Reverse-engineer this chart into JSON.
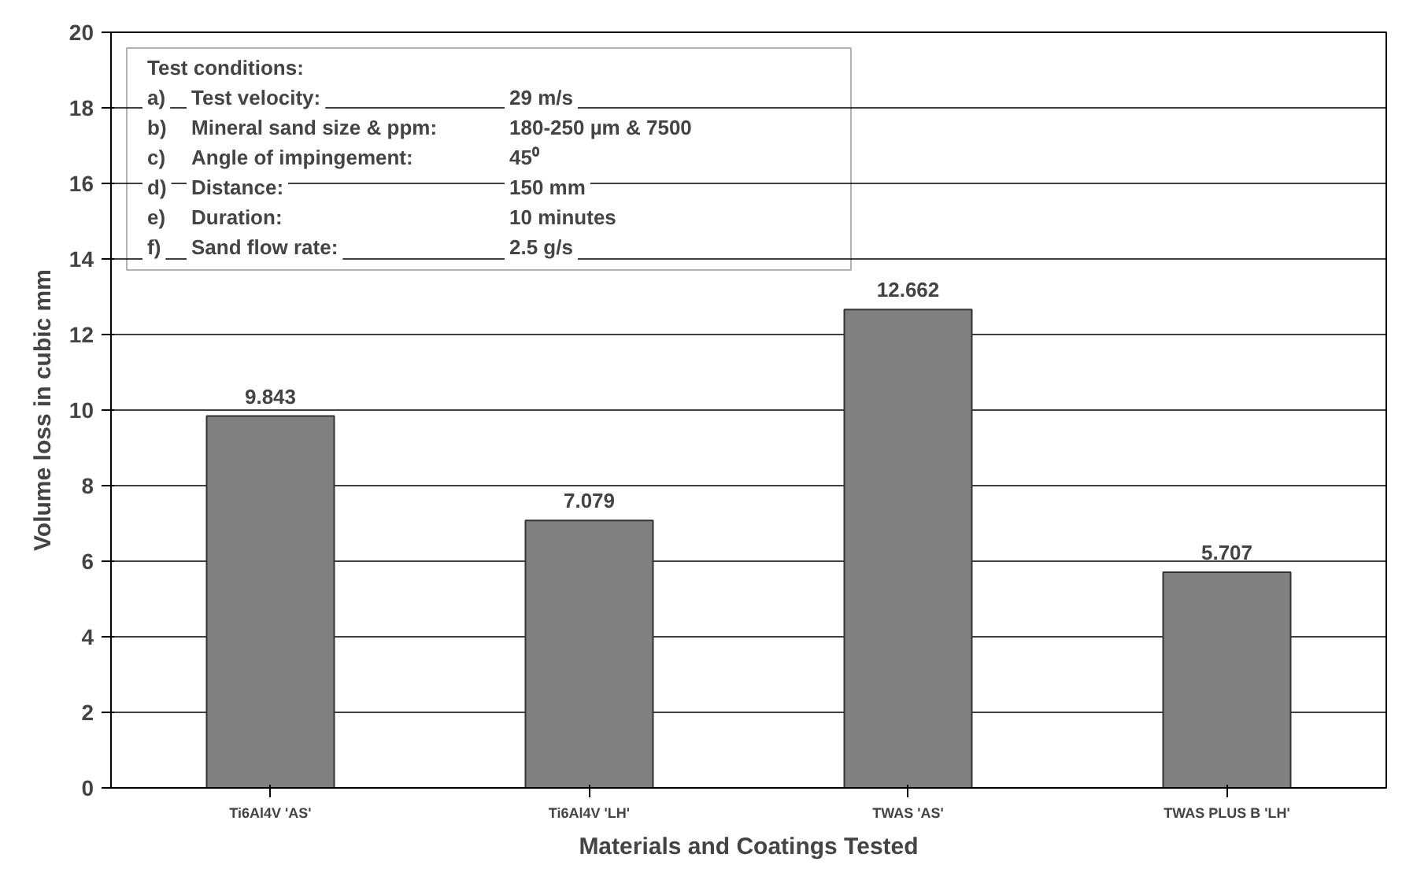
{
  "chart_data": {
    "type": "bar",
    "categories": [
      "Ti6Al4V 'AS'",
      "Ti6Al4V 'LH'",
      "TWAS 'AS'",
      "TWAS PLUS B 'LH'"
    ],
    "values": [
      9.843,
      7.079,
      12.662,
      5.707
    ],
    "color": "#808080",
    "ylim": [
      0,
      20
    ],
    "yticks": [
      0,
      2,
      4,
      6,
      8,
      10,
      12,
      14,
      16,
      18,
      20
    ],
    "grid": "y",
    "data_labels": true,
    "xlabel": "Materials and Coatings Tested",
    "ylabel": "Volume loss in cubic mm",
    "annotations": [
      "Test conditions:",
      "a)\tTest velocity:\t29 m/s",
      "b)\tMineral sand size & ppm:\t180-250 µm & 7500",
      "c)\tAngle of impingement:\t45⁰",
      "d)\tDistance:\t150 mm",
      "e)\tDuration:\t10 minutes",
      "f)\tSand flow rate:\t2.5 g/s"
    ]
  }
}
